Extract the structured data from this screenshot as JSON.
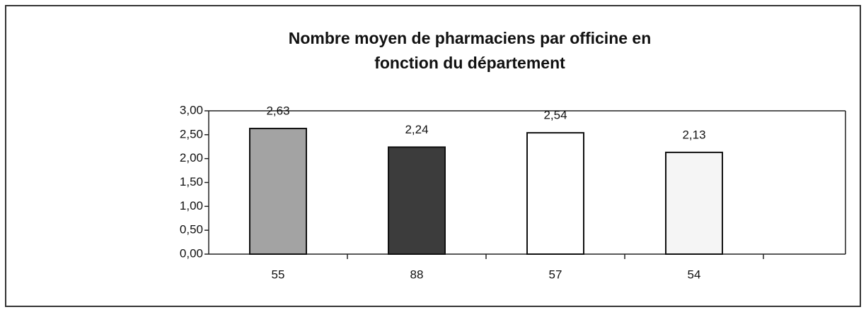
{
  "chart_data": {
    "type": "bar",
    "title": [
      "Nombre moyen de pharmaciens par officine en",
      "fonction du département"
    ],
    "categories": [
      "55",
      "88",
      "57",
      "54"
    ],
    "values": [
      2.63,
      2.24,
      2.54,
      2.13
    ],
    "value_labels": [
      "2,63",
      "2,24",
      "2,54",
      "2,13"
    ],
    "colors": [
      "#a3a3a3",
      "#3c3c3c",
      "#ffffff",
      "#f5f5f5"
    ],
    "ylim": [
      0,
      3
    ],
    "yticks": [
      {
        "value": 0,
        "label": "0,00"
      },
      {
        "value": 0.5,
        "label": "0,50"
      },
      {
        "value": 1,
        "label": "1,00"
      },
      {
        "value": 1.5,
        "label": "1,50"
      },
      {
        "value": 2,
        "label": "2,00"
      },
      {
        "value": 2.5,
        "label": "2,50"
      },
      {
        "value": 3,
        "label": "3,00"
      }
    ],
    "grid": false
  }
}
